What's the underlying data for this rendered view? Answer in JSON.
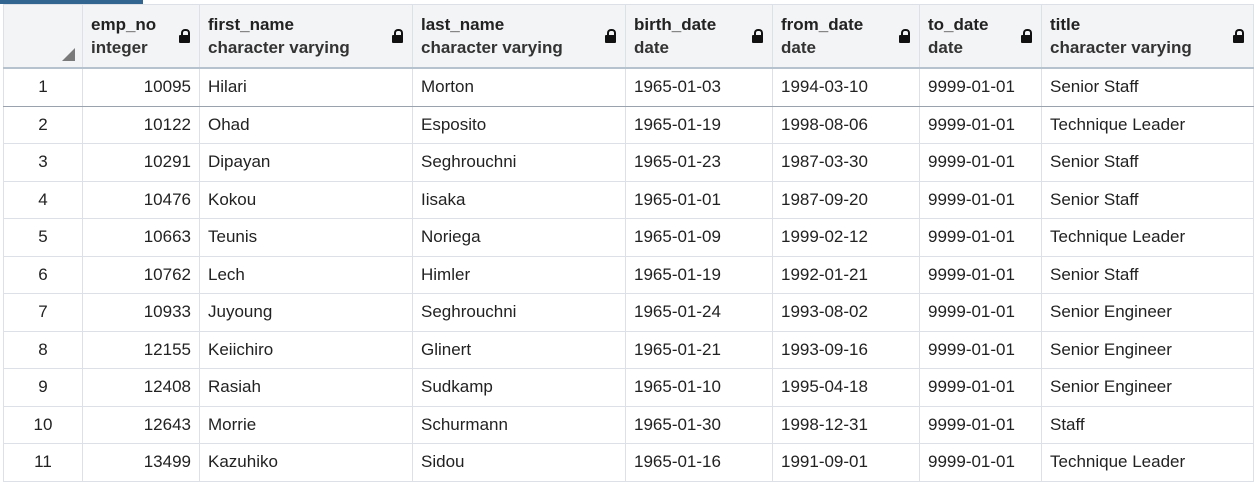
{
  "columns": [
    {
      "name": "emp_no",
      "type": "integer"
    },
    {
      "name": "first_name",
      "type": "character varying"
    },
    {
      "name": "last_name",
      "type": "character varying"
    },
    {
      "name": "birth_date",
      "type": "date"
    },
    {
      "name": "from_date",
      "type": "date"
    },
    {
      "name": "to_date",
      "type": "date"
    },
    {
      "name": "title",
      "type": "character varying"
    }
  ],
  "rows": [
    {
      "n": "1",
      "emp_no": "10095",
      "first_name": "Hilari",
      "last_name": "Morton",
      "birth_date": "1965-01-03",
      "from_date": "1994-03-10",
      "to_date": "9999-01-01",
      "title": "Senior Staff"
    },
    {
      "n": "2",
      "emp_no": "10122",
      "first_name": "Ohad",
      "last_name": "Esposito",
      "birth_date": "1965-01-19",
      "from_date": "1998-08-06",
      "to_date": "9999-01-01",
      "title": "Technique Leader"
    },
    {
      "n": "3",
      "emp_no": "10291",
      "first_name": "Dipayan",
      "last_name": "Seghrouchni",
      "birth_date": "1965-01-23",
      "from_date": "1987-03-30",
      "to_date": "9999-01-01",
      "title": "Senior Staff"
    },
    {
      "n": "4",
      "emp_no": "10476",
      "first_name": "Kokou",
      "last_name": "Iisaka",
      "birth_date": "1965-01-01",
      "from_date": "1987-09-20",
      "to_date": "9999-01-01",
      "title": "Senior Staff"
    },
    {
      "n": "5",
      "emp_no": "10663",
      "first_name": "Teunis",
      "last_name": "Noriega",
      "birth_date": "1965-01-09",
      "from_date": "1999-02-12",
      "to_date": "9999-01-01",
      "title": "Technique Leader"
    },
    {
      "n": "6",
      "emp_no": "10762",
      "first_name": "Lech",
      "last_name": "Himler",
      "birth_date": "1965-01-19",
      "from_date": "1992-01-21",
      "to_date": "9999-01-01",
      "title": "Senior Staff"
    },
    {
      "n": "7",
      "emp_no": "10933",
      "first_name": "Juyoung",
      "last_name": "Seghrouchni",
      "birth_date": "1965-01-24",
      "from_date": "1993-08-02",
      "to_date": "9999-01-01",
      "title": "Senior Engineer"
    },
    {
      "n": "8",
      "emp_no": "12155",
      "first_name": "Keiichiro",
      "last_name": "Glinert",
      "birth_date": "1965-01-21",
      "from_date": "1993-09-16",
      "to_date": "9999-01-01",
      "title": "Senior Engineer"
    },
    {
      "n": "9",
      "emp_no": "12408",
      "first_name": "Rasiah",
      "last_name": "Sudkamp",
      "birth_date": "1965-01-10",
      "from_date": "1995-04-18",
      "to_date": "9999-01-01",
      "title": "Senior Engineer"
    },
    {
      "n": "10",
      "emp_no": "12643",
      "first_name": "Morrie",
      "last_name": "Schurmann",
      "birth_date": "1965-01-30",
      "from_date": "1998-12-31",
      "to_date": "9999-01-01",
      "title": "Staff"
    },
    {
      "n": "11",
      "emp_no": "13499",
      "first_name": "Kazuhiko",
      "last_name": "Sidou",
      "birth_date": "1965-01-16",
      "from_date": "1991-09-01",
      "to_date": "9999-01-01",
      "title": "Technique Leader"
    }
  ],
  "colors": {
    "accent": "#326690",
    "header_bg": "#f3f4f6",
    "grid_line": "#dde0e6"
  },
  "icons": {
    "lock": "lock-icon",
    "corner": "select-all-corner-icon"
  }
}
